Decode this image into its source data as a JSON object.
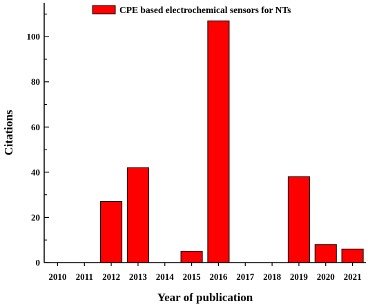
{
  "chart_data": {
    "type": "bar",
    "categories": [
      "2010",
      "2011",
      "2012",
      "2013",
      "2014",
      "2015",
      "2016",
      "2017",
      "2018",
      "2019",
      "2020",
      "2021"
    ],
    "series": [
      {
        "name": "CPE based electrochemical sensors for NTs",
        "values": [
          0,
          0,
          27,
          42,
          0,
          5,
          107,
          0,
          0,
          38,
          8,
          6
        ],
        "color": "#ff0000"
      }
    ],
    "xlabel": "Year of publication",
    "ylabel": "Citations",
    "ylim": [
      0,
      115
    ],
    "yticks": [
      0,
      20,
      40,
      60,
      80,
      100
    ],
    "grid": false,
    "legend": "top-center"
  }
}
